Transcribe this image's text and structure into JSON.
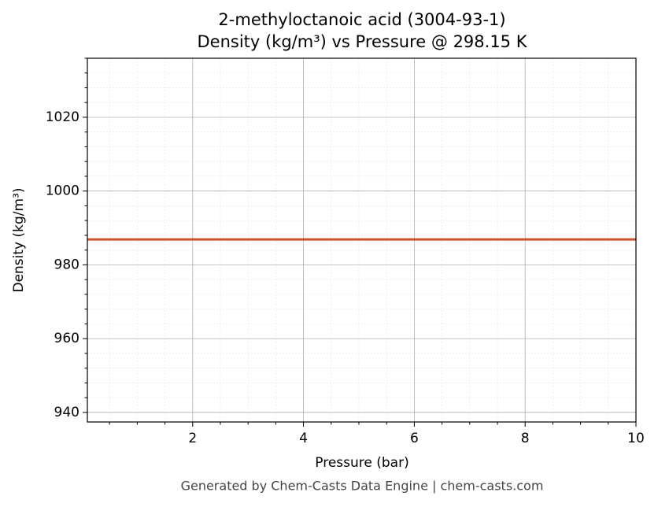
{
  "chart_data": {
    "type": "line",
    "title": "2-methyloctanoic acid (3004-93-1)",
    "subtitle": "Density (kg/m³) vs Pressure @ 298.15 K",
    "x_label": "Pressure (bar)",
    "y_label": "Density (kg/m³)",
    "footer": "Generated by Chem-Casts Data Engine | chem-casts.com",
    "x": [
      0.1,
      10
    ],
    "series": [
      {
        "name": "Density",
        "color": "#c8532a",
        "values": [
          986.9,
          986.9
        ]
      }
    ],
    "xlim": [
      0.1,
      10
    ],
    "xticks": [
      2,
      4,
      6,
      8,
      10
    ],
    "ylim": [
      937.4,
      1036
    ],
    "yticks": [
      940,
      960,
      980,
      1000,
      1020
    ],
    "grid": true
  }
}
